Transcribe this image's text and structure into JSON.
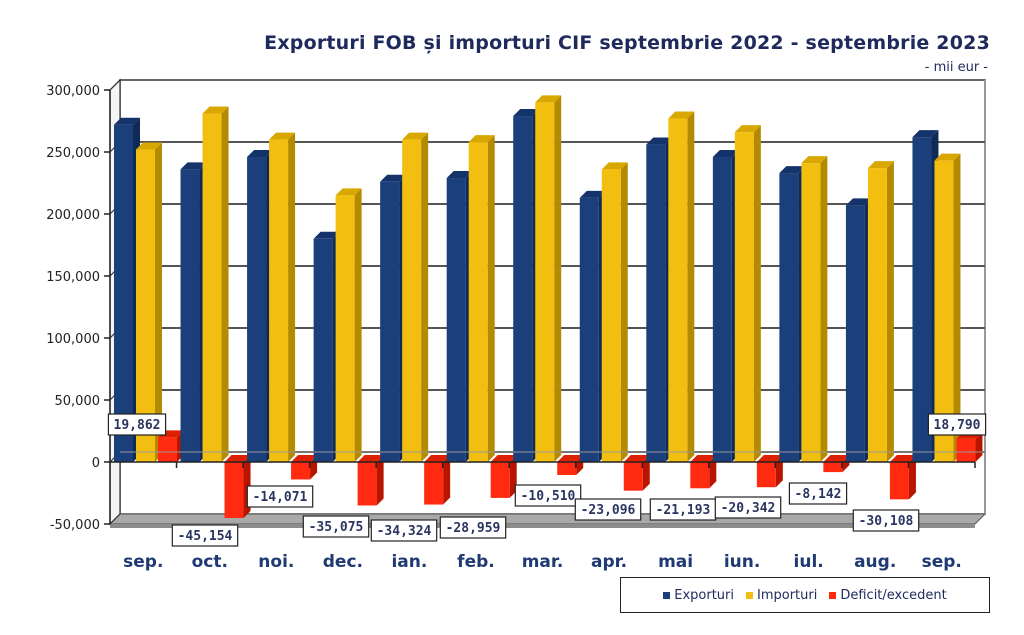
{
  "chart_data": {
    "type": "bar",
    "title": "Exporturi FOB și importuri CIF septembrie 2022 - septembrie 2023",
    "subtitle": "- mii eur -",
    "xlabel": "",
    "ylabel": "",
    "ylim": [
      -50000,
      300000
    ],
    "yticks": [
      300000,
      250000,
      200000,
      150000,
      100000,
      50000,
      0,
      -50000
    ],
    "ytick_labels": [
      "300,000",
      "250,000",
      "200,000",
      "150,000",
      "100,000",
      "50,000",
      "0",
      "-50,000"
    ],
    "grid": true,
    "legend_position": "bottom-right",
    "categories": [
      "sep.",
      "oct.",
      "noi.",
      "dec.",
      "ian.",
      "feb.",
      "mar.",
      "apr.",
      "mai",
      "iun.",
      "iul.",
      "aug.",
      "sep."
    ],
    "series": [
      {
        "name": "Exporturi",
        "color": "#1b3f7a",
        "values": [
          272000,
          236000,
          246000,
          180000,
          226000,
          229000,
          279000,
          213000,
          256000,
          246000,
          233000,
          207000,
          262000
        ]
      },
      {
        "name": "Importuri",
        "color": "#f2be0f",
        "values": [
          252000,
          281000,
          260000,
          215000,
          260000,
          258000,
          290000,
          236000,
          277000,
          266000,
          241000,
          237000,
          243000
        ]
      },
      {
        "name": "Deficit/excedent",
        "color": "#ff2a10",
        "values": [
          19862,
          -45154,
          -14071,
          -35075,
          -34324,
          -28959,
          -10510,
          -23096,
          -21193,
          -20342,
          -8142,
          -30108,
          18790
        ],
        "data_labels": [
          "19,862",
          "-45,154",
          "-14,071",
          "-35,075",
          "-34,324",
          "-28,959",
          "-10,510",
          "-23,096",
          "-21,193",
          "-20,342",
          "-8,142",
          "-30,108",
          "18,790"
        ]
      }
    ]
  },
  "legend": {
    "items": [
      {
        "label": "Exporturi",
        "color": "#1b3f7a"
      },
      {
        "label": "Importuri",
        "color": "#f2be0f"
      },
      {
        "label": "Deficit/excedent",
        "color": "#ff2a10"
      }
    ]
  }
}
